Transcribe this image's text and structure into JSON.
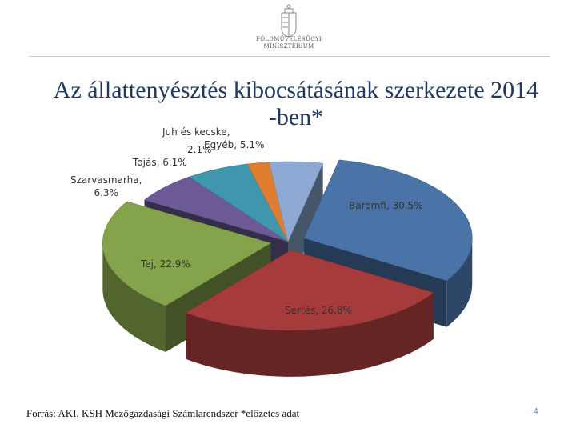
{
  "header": {
    "logo_lines": [
      "FÖLDMŰVELÉSÜGYI",
      "MINISZTÉRIUM"
    ],
    "logo_icon": "hungarian-coat-of-arms"
  },
  "chart_data": {
    "type": "pie",
    "title_lines": [
      "Az állattenyésztés kibocsátásának szerkezete 2014",
      "-ben*"
    ],
    "series": [
      {
        "name": "Baromfi",
        "value": 30.5,
        "label": "Baromfi, 30.5%",
        "color": "#4a73a8",
        "exploded": true
      },
      {
        "name": "Sertés",
        "value": 26.8,
        "label": "Sertés, 26.8%",
        "color": "#a53c3b",
        "exploded": true
      },
      {
        "name": "Tej",
        "value": 22.9,
        "label": "Tej, 22.9%",
        "color": "#84a34b",
        "exploded": true
      },
      {
        "name": "Szarvasmarha",
        "value": 6.3,
        "label_lines": [
          "Szarvasmarha,",
          "6.3%"
        ],
        "color": "#6b5a95",
        "exploded": false
      },
      {
        "name": "Tojás",
        "value": 6.1,
        "label": "Tojás, 6.1%",
        "color": "#3f97ad",
        "exploded": false
      },
      {
        "name": "Juh és kecske",
        "value": 2.1,
        "label_lines": [
          "Juh és kecske,",
          "2.1%"
        ],
        "color": "#e07d2f",
        "exploded": false
      },
      {
        "name": "Egyéb",
        "value": 5.1,
        "label": "Egyéb, 5.1%",
        "color": "#8ea9d4",
        "exploded": false
      }
    ],
    "legend": "none"
  },
  "footer": {
    "source": "Forrás: AKI, KSH Mezőgazdasági Számlarendszer *előzetes adat",
    "page_number": "4"
  }
}
